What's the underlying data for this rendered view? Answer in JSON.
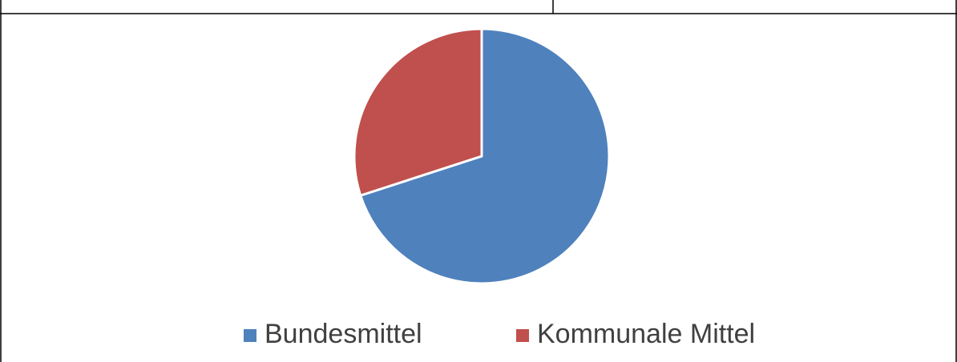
{
  "chart_data": {
    "type": "pie",
    "categories": [
      "Bundesmittel",
      "Kommunale Mittel"
    ],
    "values": [
      70,
      30
    ],
    "colors": [
      "#4f81bd",
      "#c0504d"
    ],
    "legend": "bottom"
  }
}
